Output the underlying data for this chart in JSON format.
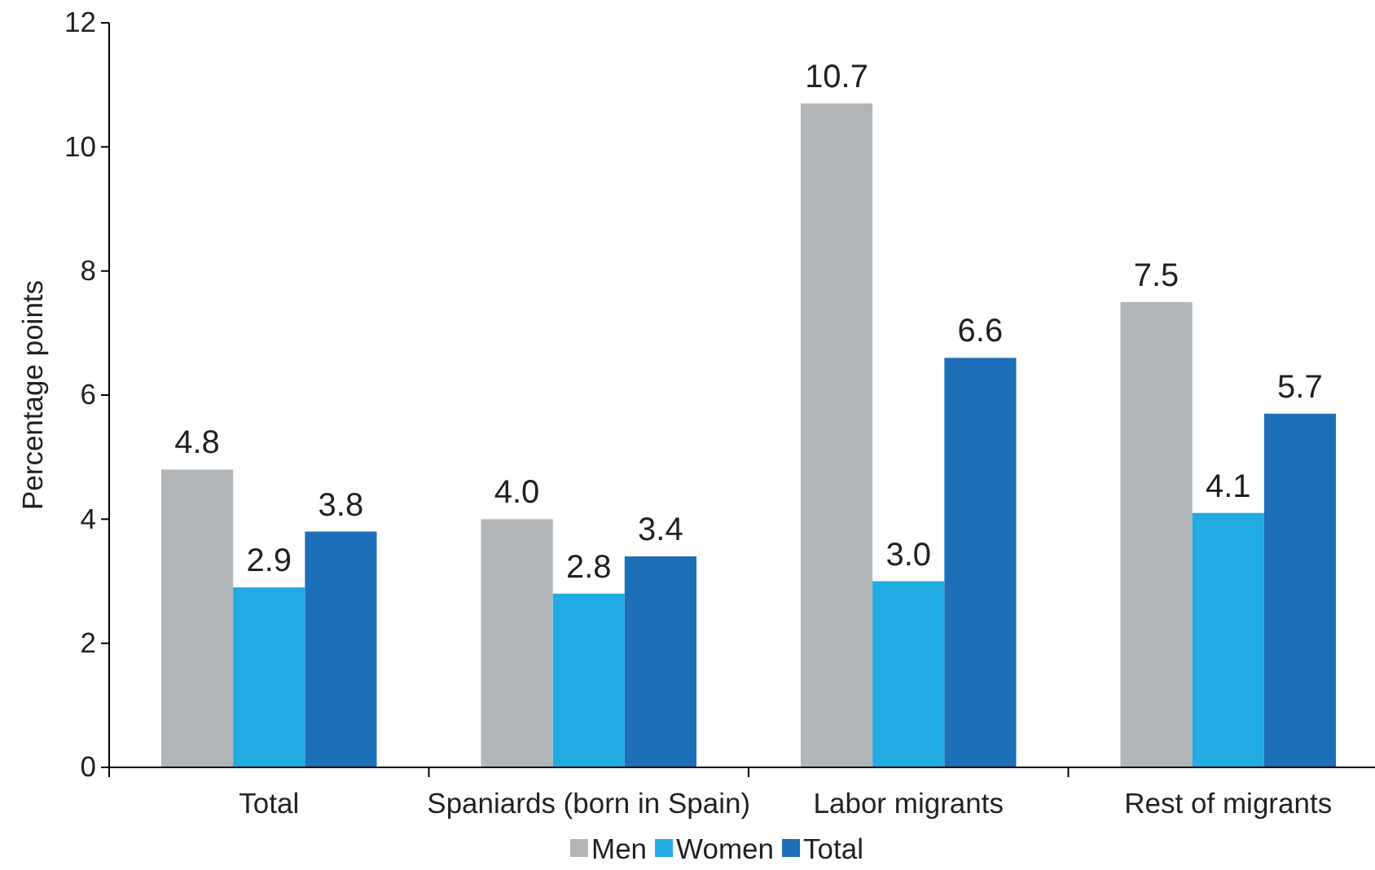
{
  "chart_data": {
    "type": "bar",
    "ylabel": "Percentage points",
    "categories": [
      "Total",
      "Spaniards (born in Spain)",
      "Labor migrants",
      "Rest of migrants"
    ],
    "series": [
      {
        "name": "Men",
        "color": "#b3b6b9",
        "values": [
          4.8,
          4.0,
          10.7,
          7.5
        ],
        "value_labels": [
          "4.8",
          "4.0",
          "10.7",
          "7.5"
        ]
      },
      {
        "name": "Women",
        "color": "#22aae2",
        "values": [
          2.9,
          2.8,
          3.0,
          4.1
        ],
        "value_labels": [
          "2.9",
          "2.8",
          "3.0",
          "4.1"
        ]
      },
      {
        "name": "Total",
        "color": "#1d70b8",
        "values": [
          3.8,
          3.4,
          6.6,
          5.7
        ],
        "value_labels": [
          "3.8",
          "3.4",
          "6.6",
          "5.7"
        ]
      }
    ],
    "ylim": [
      0,
      12
    ],
    "yticks": [
      0,
      2,
      4,
      6,
      8,
      10,
      12
    ],
    "legend": "bottom"
  }
}
